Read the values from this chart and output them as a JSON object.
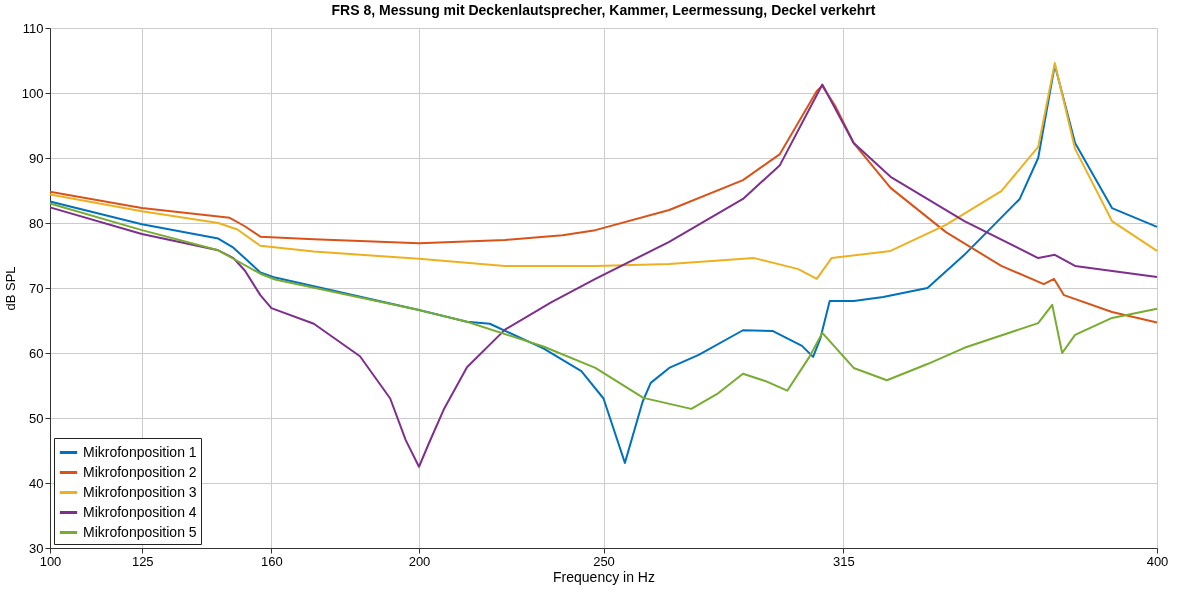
{
  "chart_data": {
    "type": "line",
    "title": "FRS 8, Messung mit Deckenlautsprecher, Kammer, Leermessung, Deckel verkehrt",
    "xlabel": "Frequency in Hz",
    "ylabel": "dB SPL",
    "xlim": [
      100,
      400
    ],
    "xticks": [
      100,
      125,
      160,
      200,
      250,
      315,
      400
    ],
    "ylim": [
      30,
      110
    ],
    "yticks": [
      30,
      40,
      50,
      60,
      70,
      80,
      90,
      100,
      110
    ],
    "grid": true,
    "legend": "bottom left",
    "line_style": "solid",
    "series": [
      {
        "name": "Mikrofonposition 1",
        "color": "#0072bd",
        "x": [
          100,
          124.9,
          145.6,
          149.7,
          157,
          161,
          200,
          213,
          219.2,
          233.7,
          244,
          250,
          255.8,
          260.6,
          262.8,
          267.8,
          275.8,
          287.8,
          295.8,
          303.8,
          306.8,
          308.8,
          311.3,
          317.8,
          325.8,
          337.8,
          347.8,
          362.8,
          367.8,
          372.3,
          377.8,
          387.8,
          400
        ],
        "values": [
          83.3,
          79.8,
          77.6,
          76.2,
          72.4,
          71.6,
          66.6,
          64.8,
          64.5,
          60.7,
          57.2,
          53,
          43.1,
          52.5,
          55.4,
          57.7,
          59.7,
          63.5,
          63.4,
          61.1,
          59.4,
          62.3,
          68,
          68,
          68.6,
          70,
          75.1,
          83.7,
          90,
          104.3,
          92.3,
          82.3,
          79.4
        ]
      },
      {
        "name": "Mikrofonposition 2",
        "color": "#d95319",
        "x": [
          100,
          124.9,
          148.7,
          152.8,
          157,
          171.5,
          200,
          223.3,
          238.9,
          247.8,
          267.8,
          287.8,
          297.8,
          307.8,
          309.3,
          312.8,
          317.8,
          327.8,
          342.8,
          357.8,
          369.3,
          372.1,
          374.8,
          387.8,
          400
        ],
        "values": [
          84.8,
          82.3,
          80.8,
          79.5,
          77.9,
          77.5,
          76.9,
          77.4,
          78.1,
          78.9,
          82,
          86.6,
          90.6,
          100.3,
          101.1,
          98,
          92.3,
          85.4,
          78.6,
          73.4,
          70.6,
          71.4,
          68.9,
          66.3,
          64.7
        ]
      },
      {
        "name": "Mikrofonposition 3",
        "color": "#edb120",
        "x": [
          100,
          124.9,
          145.6,
          150.8,
          157,
          171.5,
          200,
          223.3,
          247.8,
          267.8,
          290.8,
          302.8,
          307.8,
          311.8,
          327.8,
          342.8,
          357.8,
          367.8,
          372.3,
          377.8,
          387.8,
          400
        ],
        "values": [
          84.4,
          81.8,
          80,
          79,
          76.5,
          75.6,
          74.5,
          73.4,
          73.4,
          73.7,
          74.6,
          72.9,
          71.4,
          74.6,
          75.7,
          79.7,
          84.9,
          91.7,
          104.6,
          91.4,
          80.3,
          75.7
        ]
      },
      {
        "name": "Mikrofonposition 4",
        "color": "#7e2f8e",
        "x": [
          100,
          124.9,
          145.6,
          149.7,
          152.8,
          157,
          160,
          171.5,
          184,
          192.2,
          196.4,
          200,
          202.6,
          206.7,
          213,
          223.3,
          235.8,
          247.8,
          267.8,
          287.8,
          297.8,
          309.3,
          317.8,
          327.8,
          347.8,
          367.8,
          372.3,
          377.8,
          400
        ],
        "values": [
          82.4,
          78.3,
          75.8,
          74.6,
          72.7,
          68.9,
          66.9,
          64.5,
          59.5,
          53,
          46.6,
          42.5,
          46,
          51.3,
          57.8,
          63.6,
          67.8,
          71.4,
          77.1,
          83.7,
          88.9,
          101.3,
          92.3,
          87.1,
          80.3,
          74.6,
          75.1,
          73.4,
          71.7
        ]
      },
      {
        "name": "Mikrofonposition 5",
        "color": "#77ac30",
        "x": [
          100,
          124.9,
          145.6,
          149.7,
          157,
          161,
          200,
          213,
          233.7,
          247.8,
          260.8,
          273.8,
          280.8,
          287.8,
          293.8,
          299.8,
          305.8,
          309.3,
          317.8,
          326.8,
          337.8,
          347.8,
          367.8,
          371.6,
          374.3,
          377.8,
          387.8,
          400
        ],
        "values": [
          83,
          78.9,
          75.8,
          74.5,
          72.2,
          71.3,
          66.6,
          64.8,
          61,
          57.7,
          53.1,
          51.4,
          53.7,
          56.8,
          55.7,
          54.2,
          59.4,
          63.1,
          57.7,
          55.8,
          58.3,
          60.8,
          64.6,
          67.4,
          60,
          62.8,
          65.4,
          66.8
        ]
      }
    ]
  }
}
